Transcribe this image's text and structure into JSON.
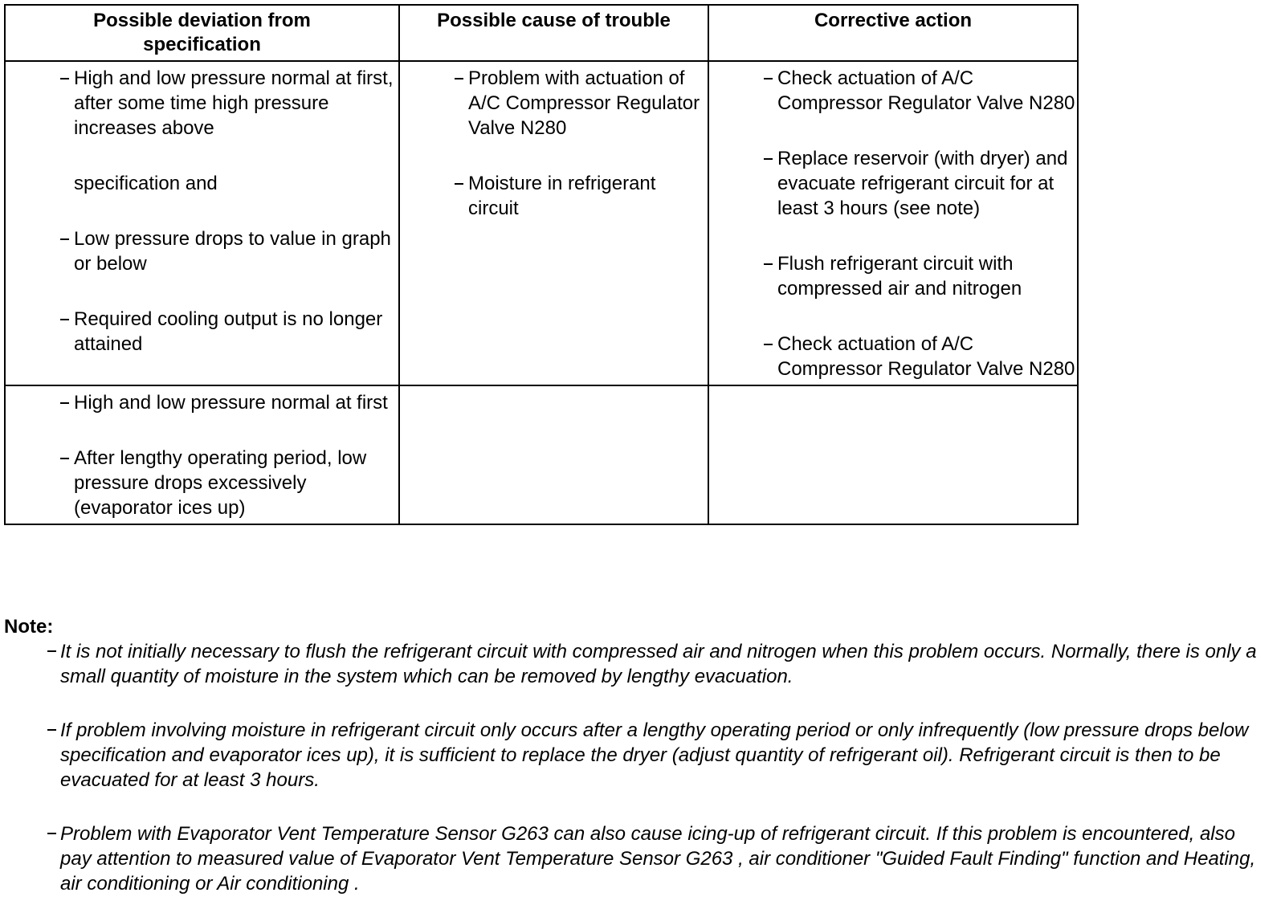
{
  "table": {
    "headers": [
      "Possible deviation from specification",
      "Possible cause of trouble",
      "Corrective action"
    ],
    "rows": [
      [
        [
          [
            "High and low pressure normal at first, after some time high pressure increases above",
            "specification and"
          ],
          [
            "Low pressure drops to value in graph or below"
          ],
          [
            "Required cooling output is no longer attained"
          ]
        ],
        [
          [
            "Problem with actuation of A/C Compressor Regulator Valve N280"
          ],
          [
            "Moisture in refrigerant circuit"
          ]
        ],
        [
          [
            "Check actuation of A/C Compressor Regulator Valve N280"
          ],
          [
            "Replace reservoir (with dryer) and evacuate refrigerant circuit for at least 3 hours (see note)"
          ],
          [
            "Flush refrigerant circuit with compressed air and nitrogen"
          ],
          [
            "Check actuation of A/C Compressor Regulator Valve N280"
          ]
        ]
      ],
      [
        [
          [
            "High and low pressure normal at first"
          ],
          [
            "After lengthy operating period, low pressure drops excessively (evaporator ices up)"
          ]
        ],
        [],
        []
      ]
    ]
  },
  "note": {
    "title": "Note:",
    "items": [
      "It is not initially necessary to flush the refrigerant circuit with compressed air and nitrogen when this problem occurs. Normally, there is only a small quantity of moisture in the system which can be removed by lengthy evacuation.",
      "If problem involving moisture in refrigerant circuit only occurs after a lengthy operating period or only infrequently (low pressure drops below specification and evaporator ices up), it is sufficient to replace the dryer (adjust quantity of refrigerant oil). Refrigerant circuit is then to be evacuated for at least 3 hours.",
      "Problem with Evaporator Vent Temperature Sensor G263 can also cause icing-up of refrigerant circuit. If this problem is encountered, also pay attention to measured value of Evaporator Vent Temperature Sensor G263 , air conditioner \"Guided Fault Finding\" function and Heating, air conditioning or Air conditioning ."
    ]
  }
}
